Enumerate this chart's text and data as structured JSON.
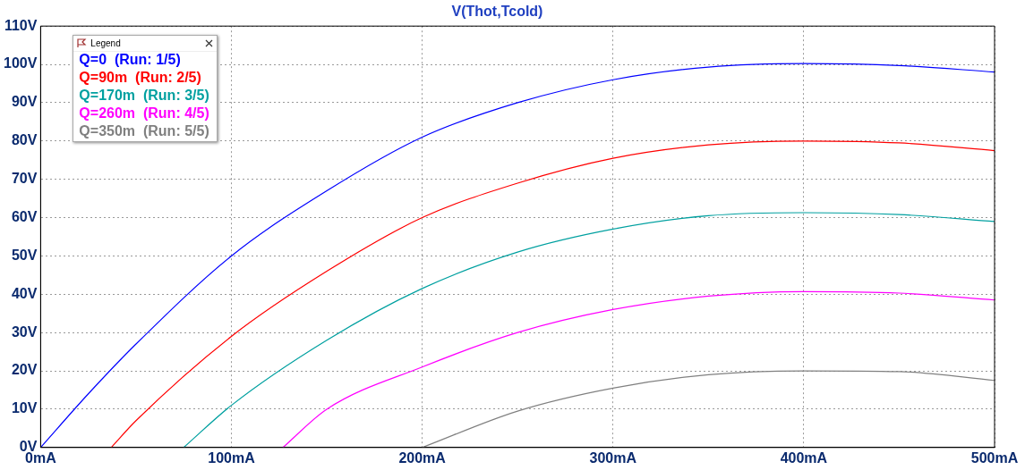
{
  "chart_data": {
    "type": "line",
    "title": "V(Thot,Tcold)",
    "legend_title": "Legend",
    "legend": "top left",
    "grid": true,
    "xlim": [
      0,
      500
    ],
    "xticks": [
      {
        "value": 0,
        "label": "0mA"
      },
      {
        "value": 100,
        "label": "100mA"
      },
      {
        "value": 200,
        "label": "200mA"
      },
      {
        "value": 300,
        "label": "300mA"
      },
      {
        "value": 400,
        "label": "400mA"
      },
      {
        "value": 500,
        "label": "500mA"
      }
    ],
    "ylim": [
      0,
      110
    ],
    "yticks": [
      {
        "value": 0,
        "label": "0V"
      },
      {
        "value": 10,
        "label": "10V"
      },
      {
        "value": 20,
        "label": "20V"
      },
      {
        "value": 30,
        "label": "30V"
      },
      {
        "value": 40,
        "label": "40V"
      },
      {
        "value": 50,
        "label": "50V"
      },
      {
        "value": 60,
        "label": "60V"
      },
      {
        "value": 70,
        "label": "70V"
      },
      {
        "value": 80,
        "label": "80V"
      },
      {
        "value": 90,
        "label": "90V"
      },
      {
        "value": 100,
        "label": "100V"
      },
      {
        "value": 110,
        "label": "110V"
      }
    ],
    "series": [
      {
        "name": "Q=0  (Run: 1/5)",
        "color": "#0000ff",
        "x": [
          0,
          25,
          50,
          100,
          150,
          200,
          250,
          300,
          350,
          400,
          450,
          500
        ],
        "values": [
          0,
          14,
          27,
          50,
          67,
          81,
          90,
          96,
          99.3,
          100.2,
          99.7,
          98
        ]
      },
      {
        "name": "Q=90m  (Run: 2/5)",
        "color": "#ff0000",
        "x": [
          37,
          50,
          100,
          150,
          200,
          250,
          300,
          350,
          400,
          450,
          500
        ],
        "values": [
          0,
          7,
          29,
          46,
          60,
          69,
          75.5,
          79,
          80,
          79.5,
          77.5
        ]
      },
      {
        "name": "Q=170m  (Run: 3/5)",
        "color": "#00a0a0",
        "x": [
          75,
          100,
          150,
          200,
          250,
          300,
          350,
          400,
          450,
          500
        ],
        "values": [
          0,
          11,
          28,
          41.5,
          51,
          57,
          60.5,
          61.3,
          60.8,
          59
        ]
      },
      {
        "name": "Q=260m  (Run: 4/5)",
        "color": "#ff00ff",
        "x": [
          127,
          150,
          200,
          250,
          300,
          350,
          400,
          450,
          500
        ],
        "values": [
          0,
          10,
          21,
          30,
          36,
          39.5,
          40.7,
          40.3,
          38.5
        ]
      },
      {
        "name": "Q=350m  (Run: 5/5)",
        "color": "#808080",
        "x": [
          200,
          250,
          300,
          350,
          400,
          450,
          500
        ],
        "values": [
          0,
          9.5,
          15.5,
          19,
          20,
          19.8,
          17.5
        ]
      }
    ]
  }
}
